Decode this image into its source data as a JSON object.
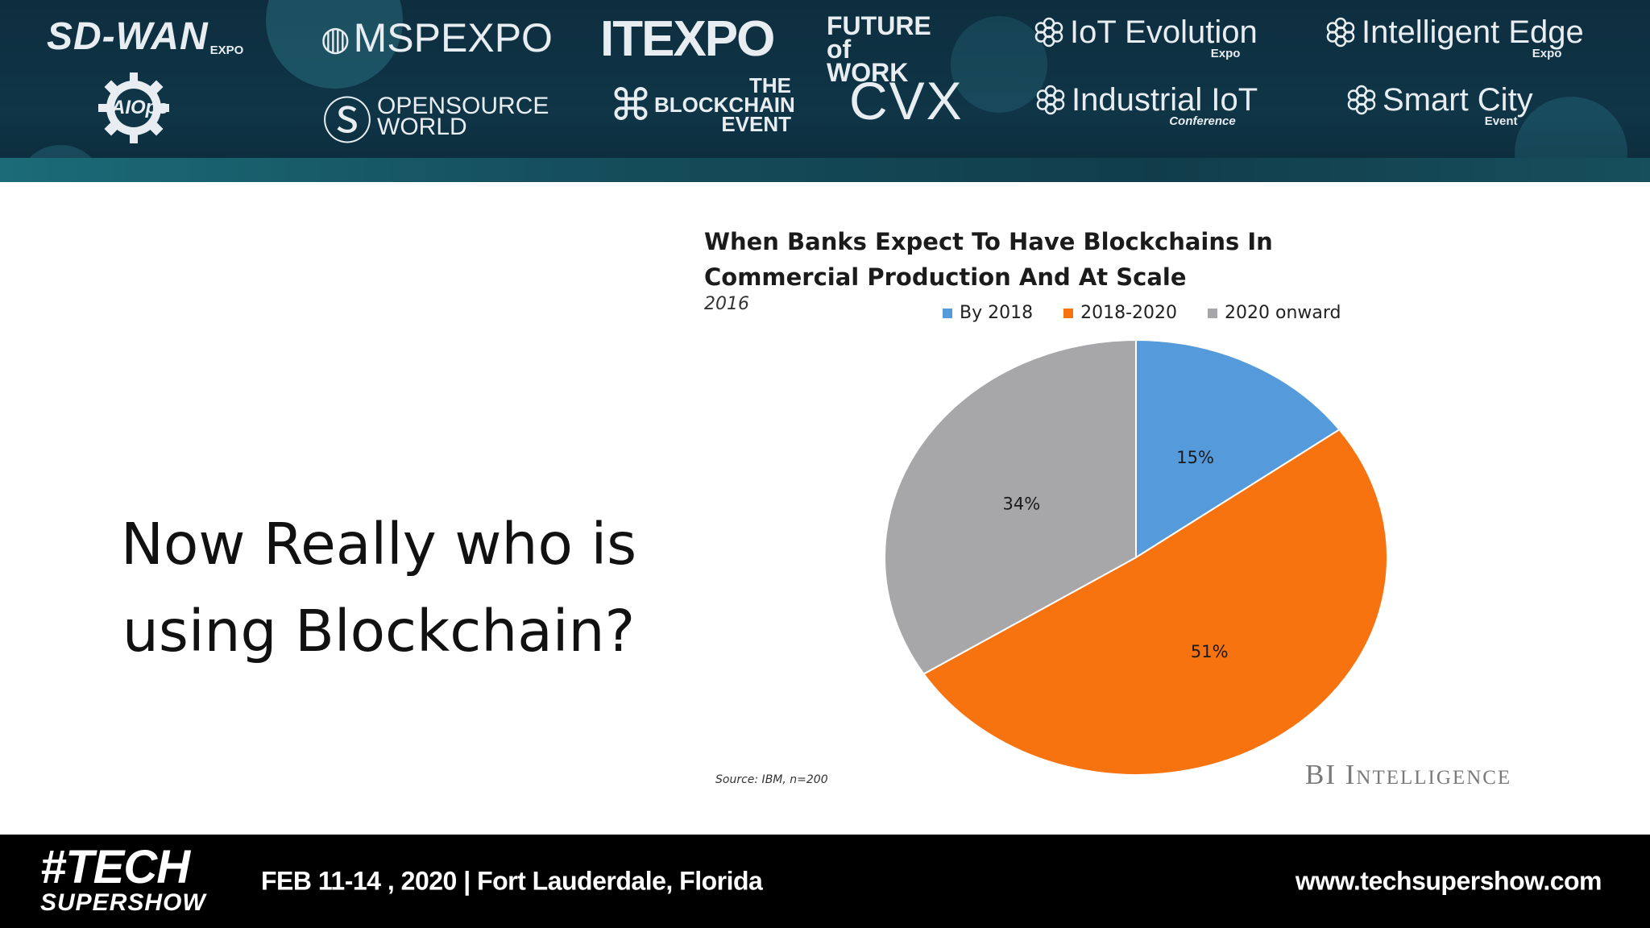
{
  "banner": {
    "logos_row1": [
      {
        "name": "sd-wan-expo-logo",
        "main": "SD-WAN",
        "sub": "EXPO"
      },
      {
        "name": "mspexpo-logo",
        "main": "MSPEXPO",
        "sub": ""
      },
      {
        "name": "itexpo-logo",
        "main": "ITEXPO",
        "sub": ""
      },
      {
        "name": "future-of-work-logo",
        "main": "FUTURE of WORK",
        "sub": ""
      },
      {
        "name": "iot-evolution-expo-logo",
        "main": "IoT Evolution",
        "sub": "Expo"
      },
      {
        "name": "intelligent-edge-expo-logo",
        "main": "Intelligent Edge",
        "sub": "Expo"
      }
    ],
    "logos_row2": [
      {
        "name": "aiops-logo",
        "main": "AIOps",
        "sub": ""
      },
      {
        "name": "opensource-world-logo",
        "main": "OPENSOURCE WORLD",
        "sub": ""
      },
      {
        "name": "blockchain-event-logo",
        "main": "THE BLOCKCHAIN EVENT",
        "sub": ""
      },
      {
        "name": "cvx-logo",
        "main": "CVX",
        "sub": ""
      },
      {
        "name": "industrial-iot-conference-logo",
        "main": "Industrial IoT",
        "sub": "Conference"
      },
      {
        "name": "smart-city-event-logo",
        "main": "Smart City",
        "sub": "Event"
      }
    ]
  },
  "slide": {
    "headline_line1": "Now Really who is",
    "headline_line2": "using Blockchain?"
  },
  "chart_data": {
    "type": "pie",
    "title": "When Banks Expect To Have Blockchains In Commercial Production And At Scale",
    "subtitle": "2016",
    "legend_position": "top",
    "slices": [
      {
        "label": "By 2018",
        "value": 15,
        "display": "15%",
        "color": "#559bdc"
      },
      {
        "label": "2018-2020",
        "value": 51,
        "display": "51%",
        "color": "#f77310"
      },
      {
        "label": "2020 onward",
        "value": 34,
        "display": "34%",
        "color": "#a7a7a9"
      }
    ],
    "source": "Source: IBM, n=200",
    "watermark": "BI Intelligence"
  },
  "footer": {
    "logo_line1": "#TECH",
    "logo_line2": "SUPERSHOW",
    "event_date": "FEB 11-14 , 2020 | Fort Lauderdale, Florida",
    "website": "www.techsupershow.com"
  }
}
